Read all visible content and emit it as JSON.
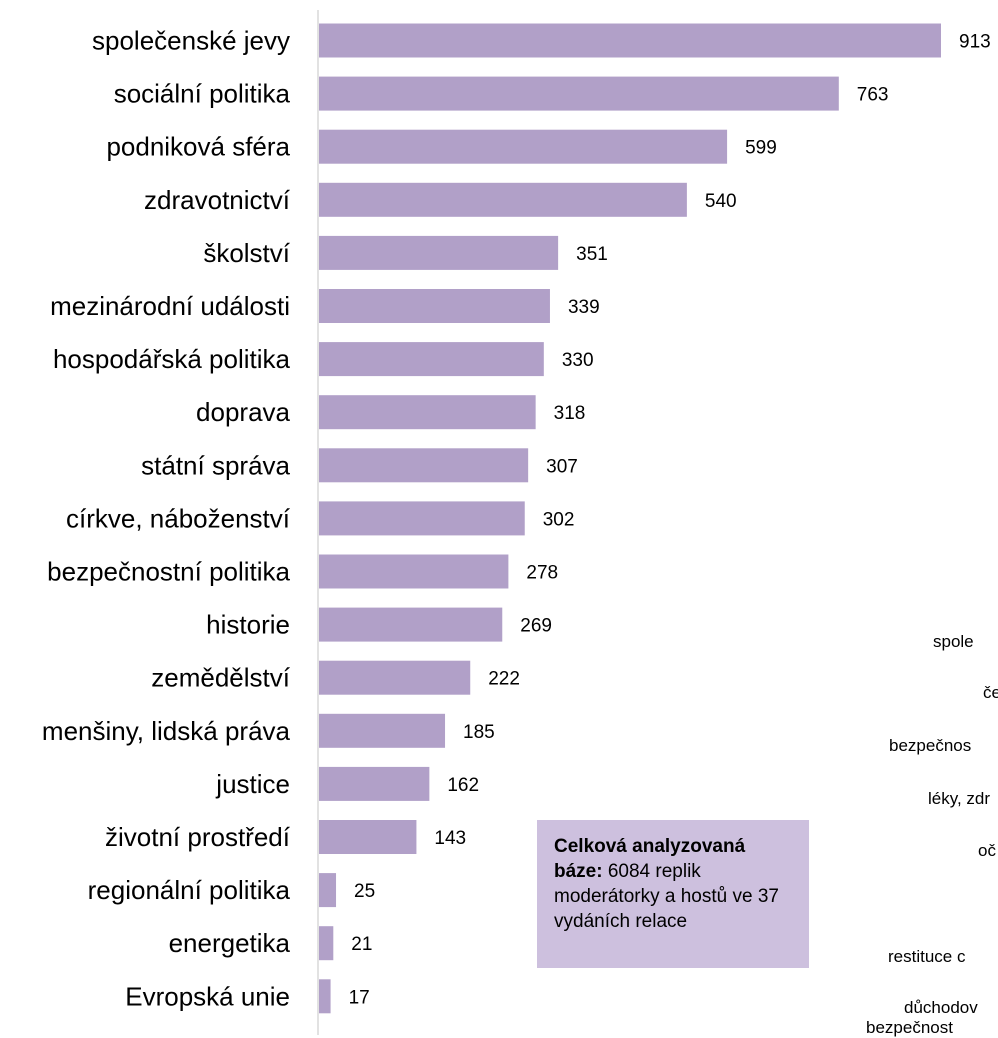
{
  "chart_data": {
    "type": "bar",
    "orientation": "horizontal",
    "bar_color": "#b1a0c8",
    "axis_color": "#d9d9d9",
    "categories": [
      "společenské jevy",
      "sociální politika",
      "podniková sféra",
      "zdravotnictví",
      "školství",
      "mezinárodní události",
      "hospodářská politika",
      "doprava",
      "státní správa",
      "církve, náboženství",
      "bezpečnostní politika",
      "historie",
      "zemědělství",
      "menšiny, lidská práva",
      "justice",
      "životní prostředí",
      "regionální politika",
      "energetika",
      "Evropská unie"
    ],
    "values": [
      913,
      763,
      599,
      540,
      351,
      339,
      330,
      318,
      307,
      302,
      278,
      269,
      222,
      185,
      162,
      143,
      25,
      21,
      17
    ],
    "data_labels": true,
    "grid": false,
    "side_fragments": [
      "spole",
      "če",
      "bezpečnos",
      "léky, zdr",
      "oč",
      "restituce c",
      "důchodov",
      "bezpečnost"
    ]
  },
  "info_box": {
    "bold_text": "Celková analyzovaná báze:",
    "text": "6084 replik moderátorky a hostů ve 37 vydáních relace",
    "background": "#cdc0de"
  }
}
